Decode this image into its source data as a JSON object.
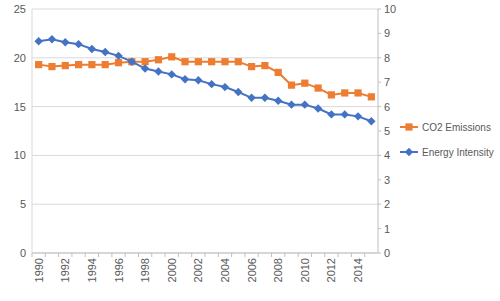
{
  "chart_data": {
    "type": "line",
    "categories": [
      "1990",
      null,
      "1992",
      null,
      "1994",
      null,
      "1996",
      null,
      "1998",
      null,
      "2000",
      null,
      "2002",
      null,
      "2004",
      null,
      "2006",
      null,
      "2008",
      null,
      "2010",
      null,
      "2012",
      null,
      "2014",
      null
    ],
    "series": [
      {
        "name": "CO2 Emissions",
        "color": "#ed7d31",
        "marker": "square",
        "line_style": "solid",
        "values": [
          19.3,
          19.1,
          19.2,
          19.3,
          19.3,
          19.3,
          19.5,
          19.6,
          19.6,
          19.8,
          20.1,
          19.6,
          19.6,
          19.6,
          19.6,
          19.6,
          19.1,
          19.2,
          18.5,
          17.2,
          17.4,
          16.9,
          16.2,
          16.4,
          16.4,
          16.0
        ]
      },
      {
        "name": "Energy Intensity",
        "color": "#4472c4",
        "marker": "diamond",
        "line_style": "solid",
        "axis": "y2",
        "values": [
          8.68,
          8.76,
          8.64,
          8.56,
          8.36,
          8.24,
          8.08,
          7.84,
          7.56,
          7.44,
          7.32,
          7.12,
          7.08,
          6.92,
          6.8,
          6.6,
          6.36,
          6.36,
          6.24,
          6.08,
          6.08,
          5.92,
          5.68,
          5.68,
          5.6,
          5.4
        ]
      }
    ],
    "ylim": [
      0,
      25
    ],
    "yticks": [
      0,
      5,
      10,
      15,
      20,
      25
    ],
    "y2lim": [
      0,
      10
    ],
    "y2ticks": [
      0,
      1,
      2,
      3,
      4,
      5,
      6,
      7,
      8,
      9,
      10
    ],
    "grid": true,
    "legend": "right"
  }
}
